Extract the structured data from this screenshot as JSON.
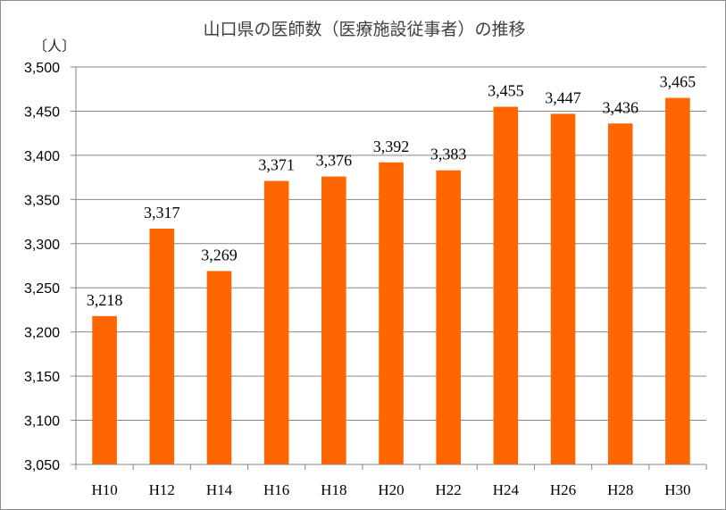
{
  "chart_data": {
    "type": "bar",
    "title": "山口県の医師数（医療施設従事者）の推移",
    "ylabel": "〔人〕",
    "xlabel": "",
    "categories": [
      "H10",
      "H12",
      "H14",
      "H16",
      "H18",
      "H20",
      "H22",
      "H24",
      "H26",
      "H28",
      "H30"
    ],
    "values": [
      3218,
      3317,
      3269,
      3371,
      3376,
      3392,
      3383,
      3455,
      3447,
      3436,
      3465
    ],
    "value_labels": [
      "3,218",
      "3,317",
      "3,269",
      "3,371",
      "3,376",
      "3,392",
      "3,383",
      "3,455",
      "3,447",
      "3,436",
      "3,465"
    ],
    "ylim": [
      3050,
      3500
    ],
    "yticks": [
      3050,
      3100,
      3150,
      3200,
      3250,
      3300,
      3350,
      3400,
      3450,
      3500
    ],
    "ytick_labels": [
      "3,050",
      "3,100",
      "3,150",
      "3,200",
      "3,250",
      "3,300",
      "3,350",
      "3,400",
      "3,450",
      "3,500"
    ],
    "grid": true,
    "legend": "none",
    "colors": {
      "bar": "#ff6600",
      "grid": "#868686",
      "axis": "#868686"
    }
  }
}
